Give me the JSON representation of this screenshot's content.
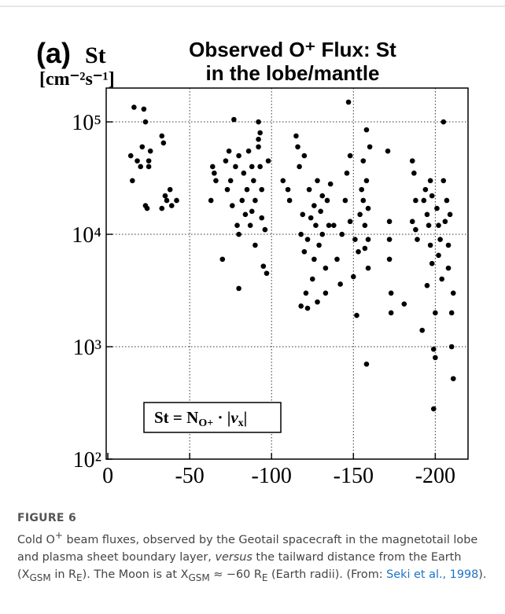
{
  "chart_data": {
    "type": "scatter",
    "panel_label": "(a)",
    "quantity": "St",
    "unit": "[cm⁻²s⁻¹]",
    "title": "Observed O⁺ Flux: St",
    "subtitle": "in the lobe/mantle",
    "formula": [
      "St = N",
      "O+",
      " · |",
      "v",
      "x",
      "|"
    ],
    "color": "#000000",
    "ylog": true,
    "grid": true,
    "xlim": [
      1,
      -220
    ],
    "xticks": [
      0,
      -50,
      -100,
      -150,
      -200
    ],
    "ylim": [
      100,
      200000
    ],
    "yticks": [
      {
        "value": 100,
        "label": "10²"
      },
      {
        "value": 1000,
        "label": "10³"
      },
      {
        "value": 10000,
        "label": "10⁴"
      },
      {
        "value": 100000,
        "label": "10⁵"
      }
    ],
    "x": [
      -14,
      -15,
      -16,
      -18,
      -20,
      -21,
      -22,
      -23,
      -23,
      -24,
      -25,
      -25,
      -26,
      -33,
      -34,
      -33,
      -36,
      -38,
      -39,
      -42,
      -35,
      -63,
      -64,
      -65,
      -66,
      -70,
      -73,
      -74,
      -75,
      -76,
      -77,
      -78,
      -79,
      -80,
      -80,
      -82,
      -83,
      -84,
      -85,
      -86,
      -87,
      -88,
      -89,
      -90,
      -90,
      -92,
      -92,
      -93,
      -94,
      -94,
      -95,
      -96,
      -97,
      -98,
      -93,
      -92,
      -80,
      -72,
      -88,
      -107,
      -110,
      -111,
      -115,
      -116,
      -117,
      -118,
      -118,
      -119,
      -120,
      -120,
      -121,
      -122,
      -122,
      -123,
      -124,
      -125,
      -126,
      -126,
      -127,
      -128,
      -128,
      -129,
      -130,
      -131,
      -131,
      -133,
      -133,
      -134,
      -135,
      -136,
      -138,
      -140,
      -142,
      -143,
      -145,
      -146,
      -147,
      -148,
      -148,
      -150,
      -151,
      -152,
      -153,
      -154,
      -155,
      -156,
      -156,
      -157,
      -157,
      -158,
      -158,
      -159,
      -159,
      -158,
      -159,
      -160,
      -171,
      -172,
      -172,
      -172,
      -173,
      -173,
      -181,
      -186,
      -186,
      -187,
      -188,
      -188,
      -189,
      -192,
      -193,
      -194,
      -195,
      -196,
      -197,
      -197,
      -198,
      -198,
      -199,
      -199,
      -200,
      -200,
      -201,
      -202,
      -203,
      -204,
      -205,
      -205,
      -206,
      -207,
      -208,
      -209,
      -210,
      -210,
      -211,
      -211,
      -208,
      -195,
      -202
    ],
    "values": [
      50000,
      30000,
      135000,
      45000,
      40000,
      60000,
      130000,
      100000,
      18000,
      17000,
      45000,
      40000,
      55000,
      75000,
      65000,
      17000,
      20000,
      25000,
      18000,
      20000,
      22000,
      20000,
      40000,
      35000,
      30000,
      6000,
      25000,
      55000,
      30000,
      18000,
      105000,
      40000,
      12000,
      3300,
      50000,
      20000,
      35000,
      15000,
      25000,
      55000,
      12000,
      16000,
      30000,
      8000,
      20000,
      100000,
      60000,
      40000,
      25000,
      14000,
      5200,
      11000,
      4500,
      45000,
      80000,
      70000,
      10000,
      45000,
      40000,
      30000,
      25000,
      20000,
      75000,
      60000,
      40000,
      10000,
      2300,
      15000,
      50000,
      7000,
      3000,
      9000,
      2200,
      25000,
      14000,
      4000,
      18000,
      6000,
      12000,
      2500,
      30000,
      8000,
      16000,
      22000,
      10000,
      5000,
      3000,
      20000,
      12000,
      28000,
      12000,
      6000,
      3600,
      10000,
      20000,
      35000,
      150000,
      50000,
      13000,
      4200,
      9000,
      1900,
      7000,
      15000,
      25000,
      45000,
      20000,
      12000,
      7500,
      85000,
      30000,
      17000,
      9000,
      700,
      5000,
      60000,
      55000,
      13000,
      9000,
      6000,
      3000,
      2000,
      2400,
      45000,
      13000,
      35000,
      20000,
      11000,
      9000,
      1400,
      20000,
      25000,
      15000,
      12000,
      30000,
      8000,
      22000,
      5500,
      280,
      950,
      800,
      2000,
      17000,
      12000,
      9000,
      4000,
      100000,
      30000,
      13000,
      20000,
      5000,
      15000,
      1000,
      2000,
      520,
      3000,
      8000,
      3500,
      6500
    ]
  },
  "caption": {
    "label": "FIGURE 6",
    "parts": [
      "Cold O",
      "+",
      " beam fluxes, observed by the Geotail spacecraft in the magnetotail lobe and plasma sheet boundary layer, ",
      "versus",
      " the tailward distance from the Earth (X",
      "GSM",
      " in R",
      "E",
      "). The Moon is at X",
      "GSM",
      " ≈ −60 R",
      "E",
      " (Earth radii). (From: ",
      "Seki et al., 1998",
      ")."
    ]
  }
}
